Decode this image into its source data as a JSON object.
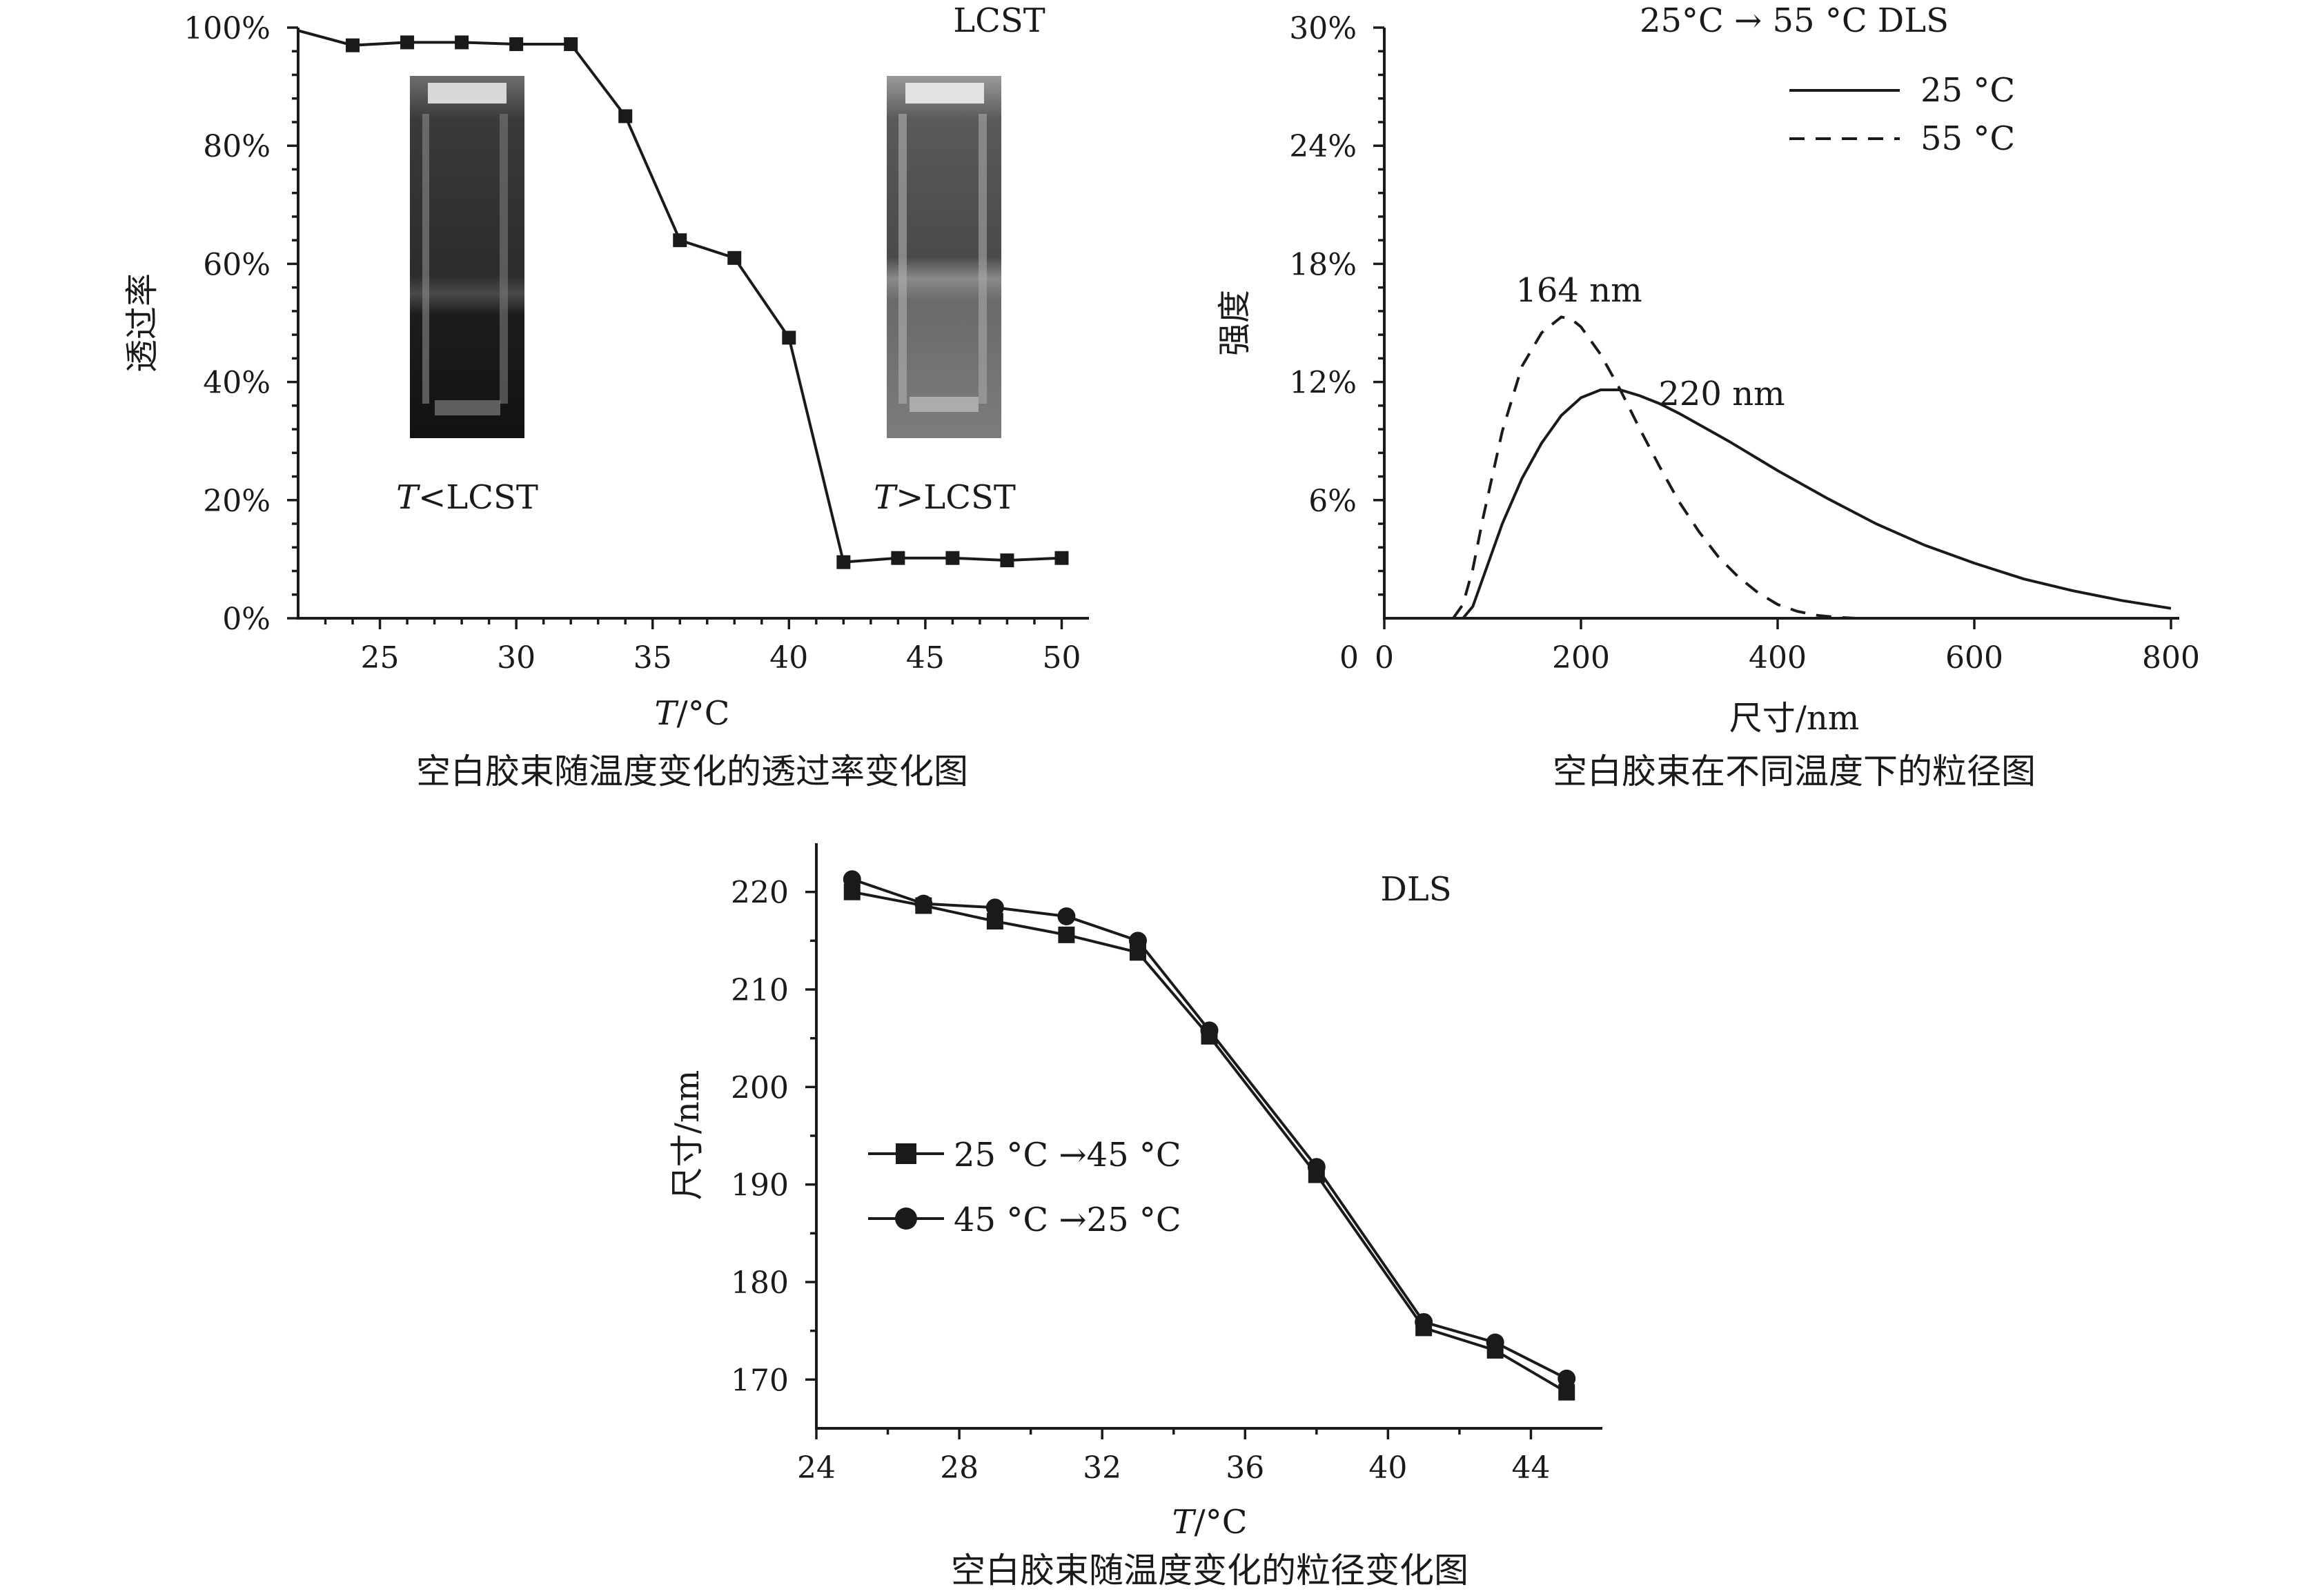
{
  "chart_data": [
    {
      "type": "line",
      "inset_labels": [
        "LCST"
      ],
      "inset_photo_left_label": {
        "italic": "T",
        "rest": "<LCST"
      },
      "inset_photo_right_label": {
        "italic": "T",
        "rest": ">LCST"
      },
      "xlabel": {
        "italic": "T",
        "rest": "/°C"
      },
      "ylabel": "透过率",
      "caption": "空白胶束随温度变化的透过率变化图",
      "xlim": [
        22,
        51
      ],
      "ylim": [
        0,
        100
      ],
      "x_ticks": [
        25,
        30,
        35,
        40,
        45,
        50
      ],
      "y_ticks": [
        0,
        20,
        40,
        60,
        80,
        100
      ],
      "y_tick_labels": [
        "0%",
        "20%",
        "40%",
        "60%",
        "80%",
        "100%"
      ],
      "series": [
        {
          "marker": "square",
          "x": [
            22,
            24,
            26,
            28,
            30,
            32,
            34,
            36,
            38,
            40,
            42,
            44,
            46,
            48,
            50
          ],
          "y": [
            99.5,
            97,
            97.5,
            97.5,
            97.2,
            97.2,
            85,
            64,
            61,
            47.5,
            9.5,
            10.2,
            10.2,
            9.8,
            10.2
          ]
        }
      ]
    },
    {
      "type": "line",
      "title": "25°C → 55 °C DLS",
      "xlabel": "尺寸/nm",
      "ylabel": "强度",
      "caption": "空白胶束在不同温度下的粒径图",
      "xlim": [
        0,
        800
      ],
      "ylim": [
        0,
        30
      ],
      "x_ticks": [
        0,
        200,
        400,
        600,
        800
      ],
      "y_ticks": [
        6,
        12,
        18,
        24,
        30
      ],
      "y_tick_labels": [
        "6%",
        "12%",
        "18%",
        "24%",
        "30%"
      ],
      "annotations": [
        "164 nm",
        "220 nm"
      ],
      "series": [
        {
          "name": "25 °C",
          "style": "solid",
          "x": [
            80,
            90,
            100,
            120,
            140,
            160,
            180,
            200,
            220,
            240,
            260,
            280,
            300,
            350,
            400,
            450,
            500,
            550,
            600,
            650,
            700,
            750,
            800
          ],
          "y": [
            0,
            0.6,
            2.0,
            4.8,
            7.1,
            8.9,
            10.3,
            11.2,
            11.6,
            11.6,
            11.3,
            10.9,
            10.4,
            9.0,
            7.5,
            6.1,
            4.8,
            3.7,
            2.8,
            2.0,
            1.4,
            0.9,
            0.5
          ]
        },
        {
          "name": "55 °C",
          "style": "dashed",
          "x": [
            70,
            80,
            90,
            100,
            120,
            140,
            160,
            180,
            190,
            200,
            220,
            240,
            260,
            280,
            300,
            320,
            340,
            360,
            380,
            400,
            420,
            440,
            460,
            480
          ],
          "y": [
            0,
            0.7,
            2.5,
            5.0,
            9.5,
            12.8,
            14.5,
            15.3,
            15.2,
            14.8,
            13.4,
            11.6,
            9.6,
            7.7,
            5.9,
            4.4,
            3.1,
            2.1,
            1.3,
            0.7,
            0.35,
            0.15,
            0.05,
            0
          ]
        }
      ]
    },
    {
      "type": "line",
      "title": "DLS",
      "xlabel": {
        "italic": "T",
        "rest": "/°C"
      },
      "ylabel": "尺寸/nm",
      "caption": "空白胶束随温度变化的粒径变化图",
      "xlim": [
        24,
        46
      ],
      "ylim": [
        165,
        225
      ],
      "x_ticks": [
        24,
        28,
        32,
        36,
        40,
        44
      ],
      "y_ticks": [
        170,
        180,
        190,
        200,
        210,
        220
      ],
      "series": [
        {
          "name": "25 °C →45 °C",
          "marker": "square",
          "x": [
            25,
            27,
            29,
            31,
            33,
            35,
            38,
            41,
            43,
            45
          ],
          "y": [
            220,
            218.6,
            217,
            215.6,
            213.8,
            205.2,
            191,
            175.3,
            173,
            168.7
          ]
        },
        {
          "name": "45 °C →25 °C",
          "marker": "circle",
          "x": [
            25,
            27,
            29,
            31,
            33,
            35,
            38,
            41,
            43,
            45
          ],
          "y": [
            221.3,
            218.8,
            218.4,
            217.5,
            215,
            205.8,
            191.8,
            175.9,
            173.8,
            170.1
          ]
        }
      ]
    }
  ]
}
